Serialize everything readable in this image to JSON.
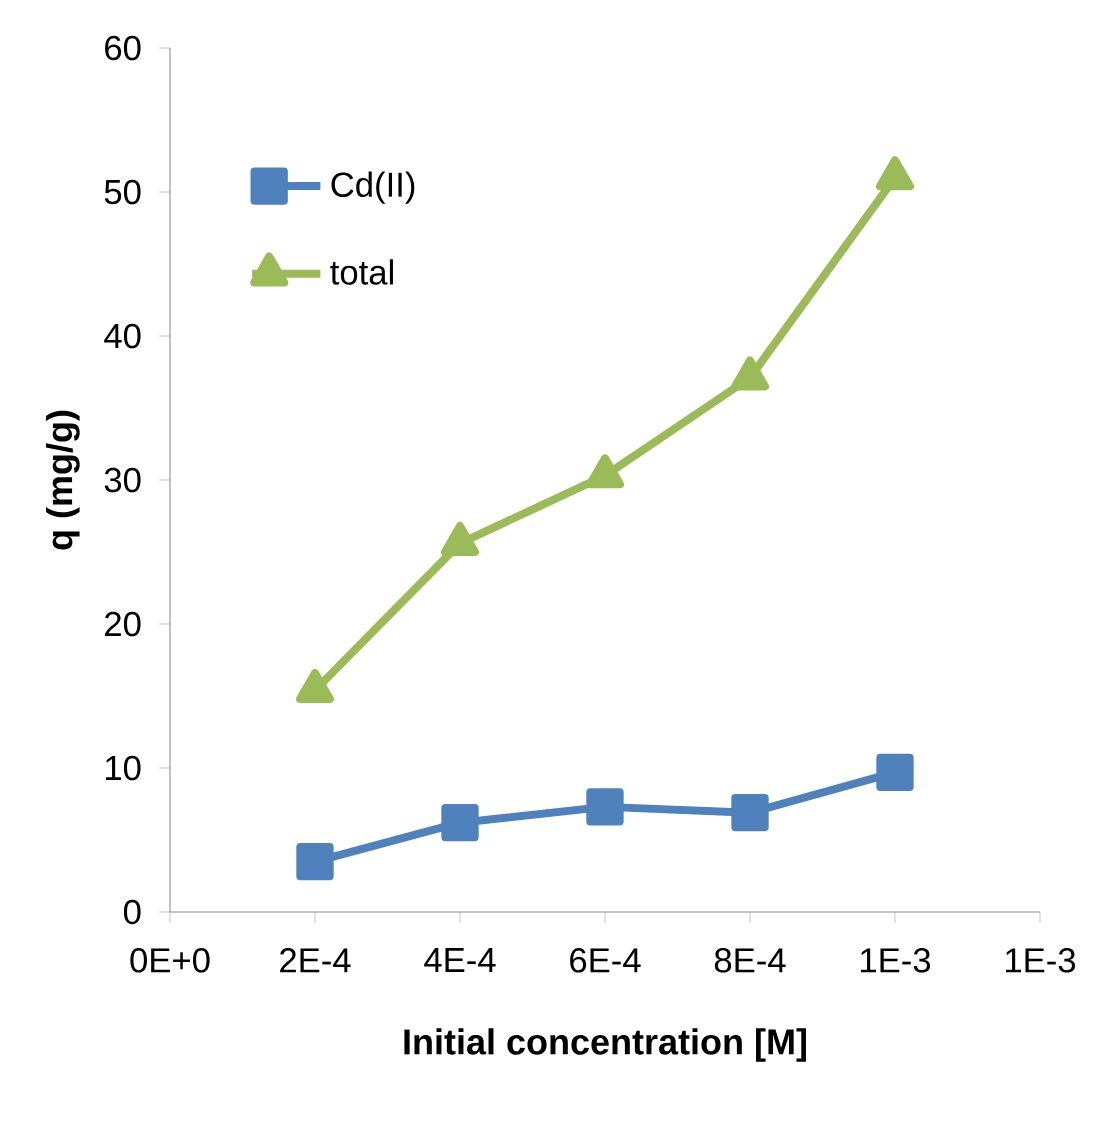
{
  "chart_data": {
    "type": "line",
    "xlabel": "Initial concentration [M]",
    "ylabel": "q (mg/g)",
    "xlim": [
      0,
      0.0012
    ],
    "xticks": [
      {
        "value": 0,
        "label": "0E+0"
      },
      {
        "value": 0.0002,
        "label": "2E-4"
      },
      {
        "value": 0.0004,
        "label": "4E-4"
      },
      {
        "value": 0.0006,
        "label": "6E-4"
      },
      {
        "value": 0.0008,
        "label": "8E-4"
      },
      {
        "value": 0.001,
        "label": "1E-3"
      },
      {
        "value": 0.0012,
        "label": "1E-3"
      }
    ],
    "ylim": [
      0,
      60
    ],
    "yticks": [
      0,
      10,
      20,
      30,
      40,
      50,
      60
    ],
    "x": [
      0.0002,
      0.0004,
      0.0006,
      0.0008,
      0.001
    ],
    "series": [
      {
        "name": "Cd(II)",
        "color": "#4f81bd",
        "marker": "square",
        "values": [
          3.5,
          6.2,
          7.3,
          6.9,
          9.7
        ]
      },
      {
        "name": "total",
        "color": "#9bbb59",
        "marker": "triangle",
        "values": [
          15.4,
          25.6,
          30.3,
          37.1,
          51.0
        ]
      }
    ],
    "legend": "top left",
    "grid": false,
    "line_style": "solid"
  }
}
